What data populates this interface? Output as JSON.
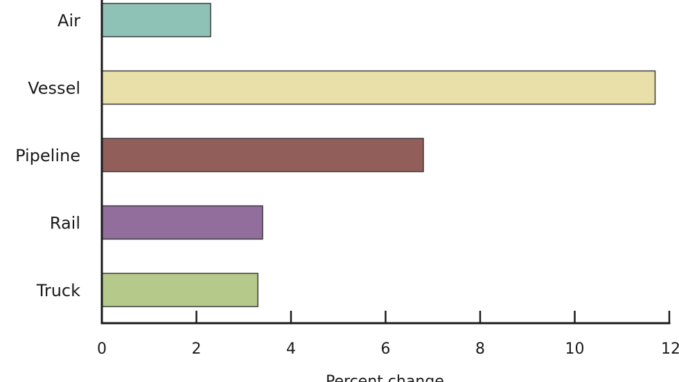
{
  "chart_data": {
    "type": "bar",
    "orientation": "horizontal",
    "categories": [
      "Air",
      "Vessel",
      "Pipeline",
      "Rail",
      "Truck"
    ],
    "values": [
      2.3,
      11.7,
      6.8,
      3.4,
      3.3
    ],
    "colors": [
      "#8fc2b6",
      "#e8e0a8",
      "#925e5a",
      "#916e9c",
      "#b5c98a"
    ],
    "xlabel": "Percent change",
    "xlim": [
      0,
      12
    ],
    "xticks": [
      0,
      2,
      4,
      6,
      8,
      10,
      12
    ],
    "grid": false,
    "legend": "none"
  }
}
